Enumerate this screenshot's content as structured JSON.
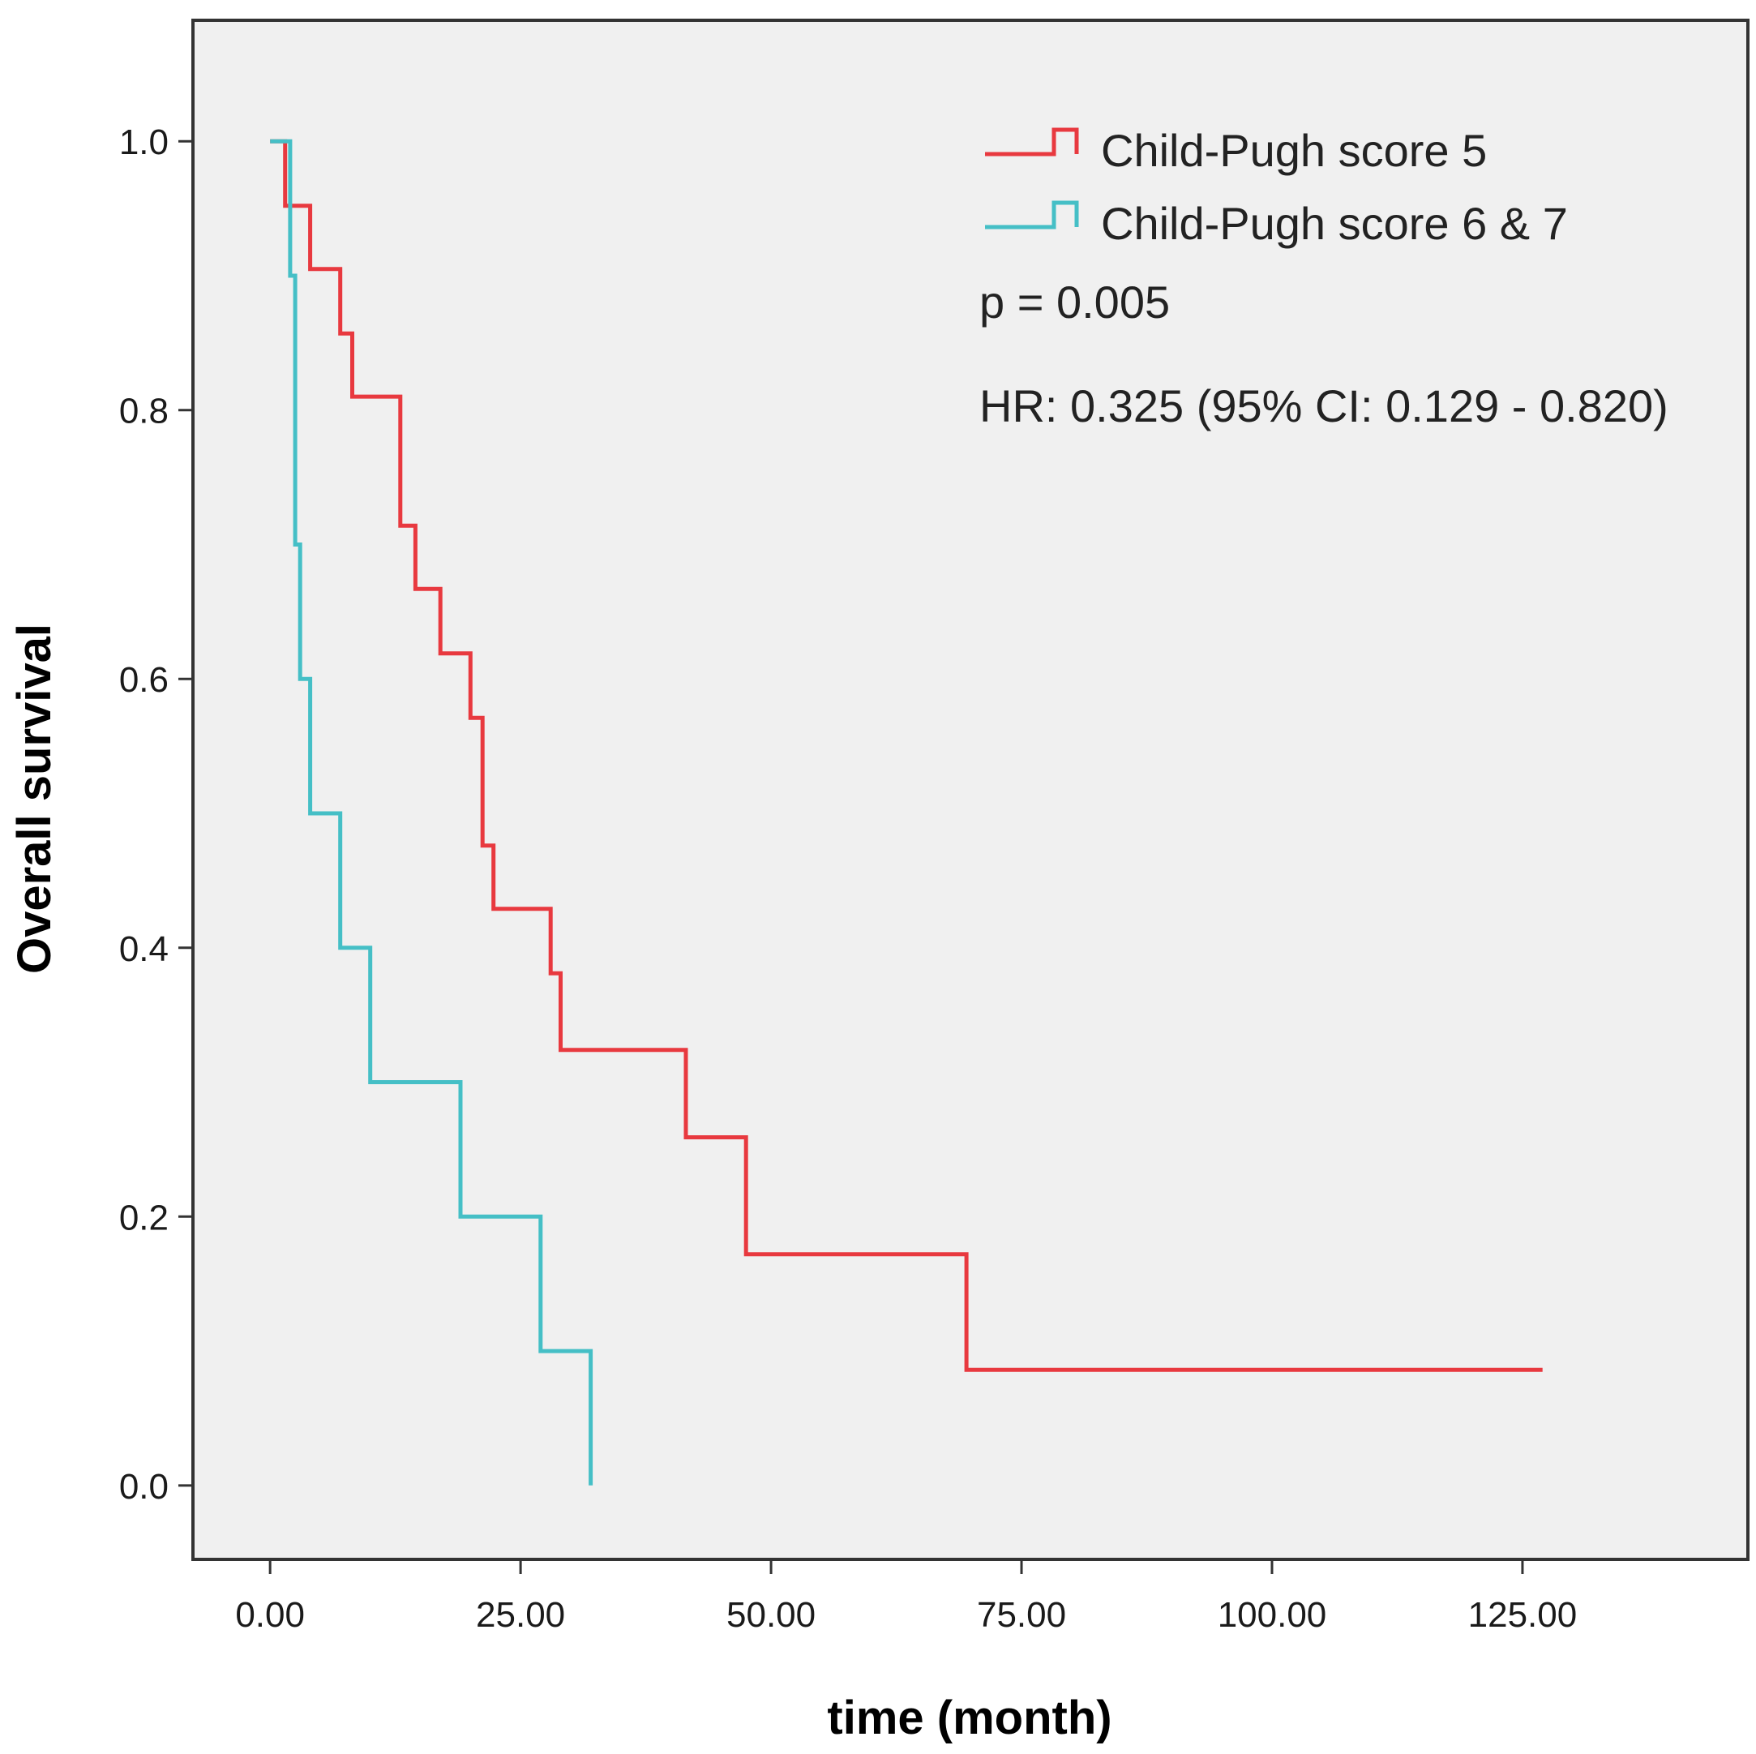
{
  "chart_data": {
    "type": "line",
    "subtype": "kaplan-meier-step",
    "title": "",
    "xlabel": "time (month)",
    "ylabel": "Overall survival",
    "xlim": [
      -7.7,
      147.5
    ],
    "ylim": [
      -0.055,
      1.09
    ],
    "x_ticks": [
      0,
      25,
      50,
      75,
      100,
      125
    ],
    "x_tick_labels": [
      "0.00",
      "25.00",
      "50.00",
      "75.00",
      "100.00",
      "125.00"
    ],
    "y_ticks": [
      0,
      0.2,
      0.4,
      0.6,
      0.8,
      1.0
    ],
    "y_tick_labels": [
      "0.0",
      "0.2",
      "0.4",
      "0.6",
      "0.8",
      "1.0"
    ],
    "grid": false,
    "legend_position": "top-right",
    "plot_background": "#f0f0f0",
    "series": [
      {
        "name": "Child-Pugh score 5",
        "color": "#e8393f",
        "points": [
          [
            0,
            1.0
          ],
          [
            1.5,
            0.952
          ],
          [
            4.0,
            0.905
          ],
          [
            7.0,
            0.857
          ],
          [
            8.2,
            0.81
          ],
          [
            13.0,
            0.714
          ],
          [
            14.5,
            0.667
          ],
          [
            17.0,
            0.619
          ],
          [
            20.0,
            0.571
          ],
          [
            21.2,
            0.476
          ],
          [
            22.3,
            0.429
          ],
          [
            28.0,
            0.381
          ],
          [
            29.0,
            0.324
          ],
          [
            41.5,
            0.259
          ],
          [
            47.5,
            0.172
          ],
          [
            69.5,
            0.086
          ],
          [
            127.0,
            0.086
          ]
        ]
      },
      {
        "name": "Child-Pugh score 6 & 7",
        "color": "#45bfc6",
        "points": [
          [
            0,
            1.0
          ],
          [
            2.0,
            0.9
          ],
          [
            2.5,
            0.7
          ],
          [
            3.0,
            0.6
          ],
          [
            4.0,
            0.5
          ],
          [
            7.0,
            0.4
          ],
          [
            10.0,
            0.3
          ],
          [
            19.0,
            0.2
          ],
          [
            27.0,
            0.1
          ],
          [
            32.0,
            0.0
          ]
        ]
      }
    ],
    "annotations": [
      "p = 0.005",
      "HR: 0.325 (95% CI: 0.129 - 0.820)"
    ]
  }
}
